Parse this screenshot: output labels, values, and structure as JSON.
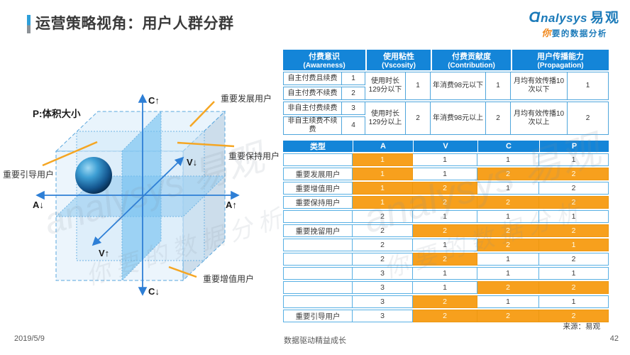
{
  "page": {
    "title": "运营策略视角：用户人群分群",
    "date": "2019/5/9",
    "footer_center": "数据驱动精益成长",
    "page_number": "42",
    "source": "来源：易观"
  },
  "logo": {
    "brand_latin_initial": "Ɑ",
    "brand_latin_rest": "nalysys",
    "brand_cn": "易观",
    "tagline_first": "你",
    "tagline_rest": "要的数据分析"
  },
  "watermark": {
    "left_line1": "analysys 易观",
    "left_line2": "你要的数据分析",
    "right_line1": "analysys 易观",
    "right_line2": "你要的数据分析"
  },
  "diagram": {
    "p_label": "P:体积大小",
    "axes": {
      "c_up": "C↑",
      "c_down": "C↓",
      "a_down": "A↓",
      "a_up": "A↑",
      "v_down": "V↓",
      "v_up": "V↑"
    },
    "callouts": {
      "develop": "重要发展用户",
      "maintain": "重要保持用户",
      "guide": "重要引导用户",
      "value_add": "重要增值用户"
    }
  },
  "definition_table": {
    "groups": [
      {
        "title_cn": "付费意识",
        "title_en": "(Awareness)"
      },
      {
        "title_cn": "使用粘性",
        "title_en": "(Vscosity)"
      },
      {
        "title_cn": "付费贡献度",
        "title_en": "(Contribution)"
      },
      {
        "title_cn": "用户传播能力",
        "title_en": "(Propagation)"
      }
    ],
    "awareness_rows": [
      [
        "自主付费且续费",
        "1"
      ],
      [
        "自主付费不续费",
        "2"
      ],
      [
        "非自主付费续费",
        "3"
      ],
      [
        "非自主续费不续费",
        "4"
      ]
    ],
    "merged_rows": [
      {
        "vscosity": [
          "使用时长129分以下",
          "1"
        ],
        "contribution": [
          "年消费98元以下",
          "1"
        ],
        "propagation": [
          "月均有效传播10次以下",
          "1"
        ]
      },
      {
        "vscosity": [
          "使用时长129分以上",
          "2"
        ],
        "contribution": [
          "年消费98元以上",
          "2"
        ],
        "propagation": [
          "月均有效传播10次以上",
          "2"
        ]
      }
    ]
  },
  "segment_table": {
    "headers": [
      "类型",
      "A",
      "V",
      "C",
      "P"
    ],
    "rows": [
      {
        "label": "",
        "cells": [
          {
            "v": "1",
            "hl": true
          },
          {
            "v": "1",
            "hl": false
          },
          {
            "v": "1",
            "hl": false
          },
          {
            "v": "1",
            "hl": false
          }
        ]
      },
      {
        "label": "重要发展用户",
        "cells": [
          {
            "v": "1",
            "hl": true
          },
          {
            "v": "1",
            "hl": false
          },
          {
            "v": "2",
            "hl": true
          },
          {
            "v": "2",
            "hl": true
          }
        ]
      },
      {
        "label": "重要增值用户",
        "cells": [
          {
            "v": "1",
            "hl": true
          },
          {
            "v": "2",
            "hl": true
          },
          {
            "v": "1",
            "hl": false
          },
          {
            "v": "2",
            "hl": false
          }
        ]
      },
      {
        "label": "重要保持用户",
        "cells": [
          {
            "v": "1",
            "hl": true
          },
          {
            "v": "2",
            "hl": true
          },
          {
            "v": "2",
            "hl": true
          },
          {
            "v": "2",
            "hl": true
          }
        ]
      },
      {
        "label": "",
        "cells": [
          {
            "v": "2",
            "hl": false
          },
          {
            "v": "1",
            "hl": false
          },
          {
            "v": "1",
            "hl": false
          },
          {
            "v": "1",
            "hl": false
          }
        ]
      },
      {
        "label": "重要挽留用户",
        "cells": [
          {
            "v": "2",
            "hl": false
          },
          {
            "v": "2",
            "hl": true
          },
          {
            "v": "2",
            "hl": true
          },
          {
            "v": "2",
            "hl": true
          }
        ]
      },
      {
        "label": "",
        "cells": [
          {
            "v": "2",
            "hl": false
          },
          {
            "v": "1",
            "hl": false
          },
          {
            "v": "2",
            "hl": true
          },
          {
            "v": "1",
            "hl": true
          }
        ]
      },
      {
        "label": "",
        "cells": [
          {
            "v": "2",
            "hl": false
          },
          {
            "v": "2",
            "hl": true
          },
          {
            "v": "1",
            "hl": false
          },
          {
            "v": "2",
            "hl": false
          }
        ]
      },
      {
        "label": "",
        "cells": [
          {
            "v": "3",
            "hl": false
          },
          {
            "v": "1",
            "hl": false
          },
          {
            "v": "1",
            "hl": false
          },
          {
            "v": "1",
            "hl": false
          }
        ]
      },
      {
        "label": "",
        "cells": [
          {
            "v": "3",
            "hl": false
          },
          {
            "v": "1",
            "hl": false
          },
          {
            "v": "2",
            "hl": true
          },
          {
            "v": "2",
            "hl": true
          }
        ]
      },
      {
        "label": "",
        "cells": [
          {
            "v": "3",
            "hl": false
          },
          {
            "v": "2",
            "hl": true
          },
          {
            "v": "1",
            "hl": false
          },
          {
            "v": "1",
            "hl": false
          }
        ]
      },
      {
        "label": "重要引导用户",
        "cells": [
          {
            "v": "3",
            "hl": false
          },
          {
            "v": "2",
            "hl": true
          },
          {
            "v": "2",
            "hl": true
          },
          {
            "v": "2",
            "hl": true
          }
        ]
      }
    ]
  },
  "colors": {
    "header_blue": "#1485D8",
    "highlight_orange": "#F7A01D",
    "callout_orange": "#F5A623",
    "axis_blue": "#2E7FD6"
  }
}
